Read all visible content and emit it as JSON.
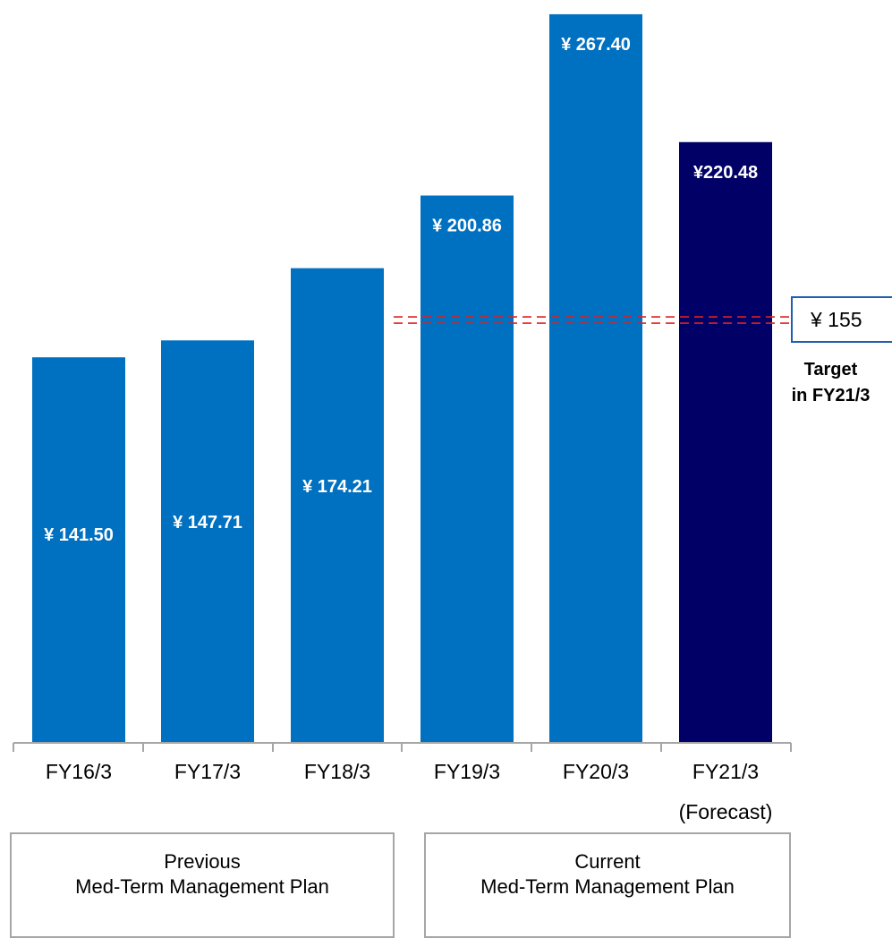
{
  "chart_data": {
    "type": "bar",
    "categories": [
      "FY16/3",
      "FY17/3",
      "FY18/3",
      "FY19/3",
      "FY20/3",
      "FY21/3"
    ],
    "category_notes": [
      "",
      "",
      "",
      "",
      "",
      "(Forecast)"
    ],
    "values": [
      141.5,
      147.71,
      174.21,
      200.86,
      267.4,
      220.48
    ],
    "value_labels": [
      "¥ 141.50",
      "¥ 147.71",
      "¥ 174.21",
      "¥ 200.86",
      "¥ 267.40",
      "¥220.48"
    ],
    "colors": [
      "#0070c0",
      "#0070c0",
      "#0070c0",
      "#0070c0",
      "#0070c0",
      "#000066"
    ],
    "ylim": [
      0,
      270
    ],
    "target": {
      "value": 155,
      "label": "¥ 155",
      "note_line1": "Target",
      "note_line2": "in FY21/3",
      "line_color": "#e02020"
    }
  },
  "plans": {
    "previous": {
      "line1": "Previous",
      "line2": "Med-Term Management Plan"
    },
    "current": {
      "line1": "Current",
      "line2": "Med-Term Management Plan"
    }
  }
}
